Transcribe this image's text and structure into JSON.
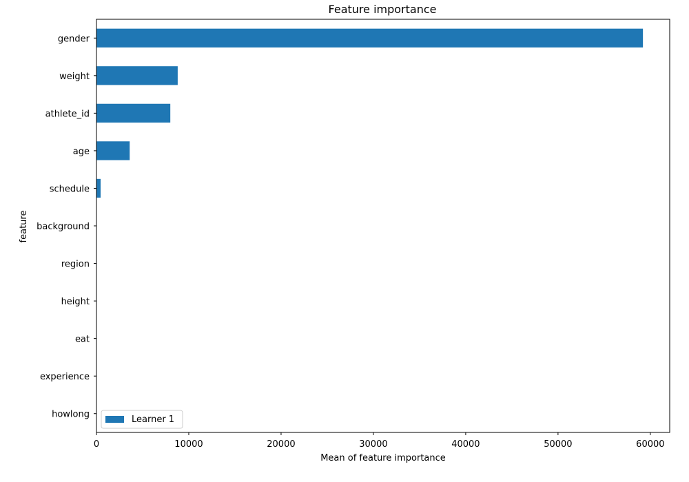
{
  "chart_data": {
    "type": "bar",
    "orientation": "horizontal",
    "title": "Feature importance",
    "xlabel": "Mean of feature importance",
    "ylabel": "feature",
    "categories": [
      "gender",
      "weight",
      "athlete_id",
      "age",
      "schedule",
      "background",
      "region",
      "height",
      "eat",
      "experience",
      "howlong"
    ],
    "series": [
      {
        "name": "Learner 1",
        "color": "#1f77b4",
        "values": [
          59200,
          8800,
          8000,
          3600,
          450,
          0,
          0,
          0,
          0,
          0,
          0
        ]
      }
    ],
    "xlim": [
      0,
      62100
    ],
    "xticks": [
      0,
      10000,
      20000,
      30000,
      40000,
      50000,
      60000
    ],
    "legend_position": "lower-left",
    "grid": false
  }
}
